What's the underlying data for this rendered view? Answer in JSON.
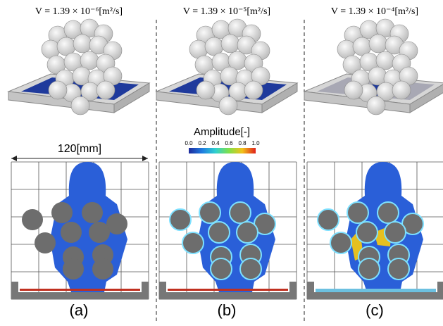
{
  "panels": [
    {
      "title": "V = 1.39 × 10⁻⁶[m²/s]",
      "label": "(a)"
    },
    {
      "title": "V = 1.39 × 10⁻⁵[m²/s]",
      "label": "(b)"
    },
    {
      "title": "V = 1.39 × 10⁻⁴[m²/s]",
      "label": "(c)"
    }
  ],
  "colorbar": {
    "title": "Amplitude[-]",
    "ticks": [
      "0.0",
      "0.2",
      "0.4",
      "0.6",
      "0.8",
      "1.0"
    ]
  },
  "dimension": "120[mm]"
}
